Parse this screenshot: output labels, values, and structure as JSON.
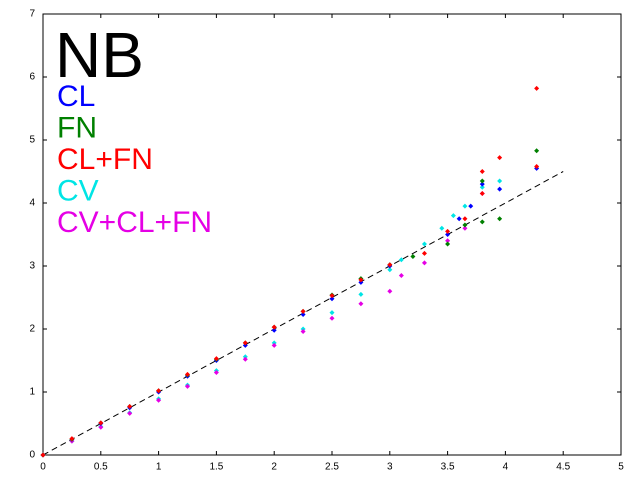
{
  "chart_data": {
    "type": "scatter",
    "title": "NB",
    "xlim": [
      0,
      5
    ],
    "ylim": [
      0,
      7
    ],
    "xticks": [
      0,
      0.5,
      1,
      1.5,
      2,
      2.5,
      3,
      3.5,
      4,
      4.5,
      5
    ],
    "yticks": [
      0,
      1,
      2,
      3,
      4,
      5,
      6,
      7
    ],
    "reference_line": {
      "x": [
        0,
        4.5
      ],
      "y": [
        0,
        4.5
      ],
      "color": "#000000"
    },
    "series": [
      {
        "name": "CL",
        "color": "#0000ff",
        "x": [
          0,
          0.25,
          0.5,
          0.75,
          1,
          1.25,
          1.5,
          1.75,
          2,
          2.25,
          2.5,
          2.75,
          3,
          3.5,
          3.6,
          3.7,
          3.8,
          3.95,
          4.27
        ],
        "values": [
          0,
          0.25,
          0.5,
          0.75,
          1,
          1.25,
          1.5,
          1.74,
          1.98,
          2.23,
          2.48,
          2.74,
          3,
          3.5,
          3.75,
          3.95,
          4.3,
          4.22,
          4.55
        ]
      },
      {
        "name": "FN",
        "color": "#008000",
        "x": [
          0,
          0.25,
          0.5,
          0.75,
          1,
          1.25,
          1.5,
          1.75,
          2,
          2.25,
          2.5,
          2.75,
          3,
          3.2,
          3.5,
          3.65,
          3.8,
          3.8,
          3.95,
          4.27
        ],
        "values": [
          0,
          0.25,
          0.51,
          0.77,
          1.02,
          1.27,
          1.52,
          1.78,
          2.03,
          2.28,
          2.54,
          2.8,
          3.02,
          3.15,
          3.35,
          3.65,
          3.7,
          4.35,
          3.75,
          4.83
        ]
      },
      {
        "name": "CL+FN",
        "color": "#ff0000",
        "x": [
          0,
          0.25,
          0.5,
          0.75,
          1,
          1.25,
          1.5,
          1.75,
          2,
          2.25,
          2.5,
          2.75,
          3,
          3.3,
          3.5,
          3.65,
          3.8,
          3.8,
          3.95,
          4.27,
          4.27
        ],
        "values": [
          0,
          0.26,
          0.51,
          0.77,
          1.02,
          1.28,
          1.53,
          1.78,
          2.03,
          2.28,
          2.53,
          2.78,
          3.02,
          3.2,
          3.55,
          3.75,
          4.15,
          4.5,
          4.72,
          4.58,
          5.82
        ]
      },
      {
        "name": "CV",
        "color": "#00e5e5",
        "x": [
          0,
          0.25,
          0.5,
          0.75,
          1,
          1.25,
          1.5,
          1.75,
          2,
          2.25,
          2.5,
          2.75,
          3,
          3.1,
          3.3,
          3.45,
          3.55,
          3.65,
          3.8,
          3.95
        ],
        "values": [
          0,
          0.22,
          0.45,
          0.67,
          0.89,
          1.11,
          1.34,
          1.56,
          1.78,
          2.0,
          2.26,
          2.55,
          2.94,
          3.1,
          3.35,
          3.6,
          3.8,
          3.95,
          4.25,
          4.35
        ]
      },
      {
        "name": "CV+CL+FN",
        "color": "#e500e5",
        "x": [
          0,
          0.25,
          0.5,
          0.75,
          1,
          1.25,
          1.5,
          1.75,
          2,
          2.25,
          2.5,
          2.75,
          3,
          3.1,
          3.3,
          3.5,
          3.65,
          3.8
        ],
        "values": [
          0,
          0.22,
          0.44,
          0.66,
          0.87,
          1.09,
          1.31,
          1.52,
          1.74,
          1.96,
          2.17,
          2.4,
          2.6,
          2.85,
          3.05,
          3.4,
          3.6,
          4.15
        ]
      }
    ]
  }
}
